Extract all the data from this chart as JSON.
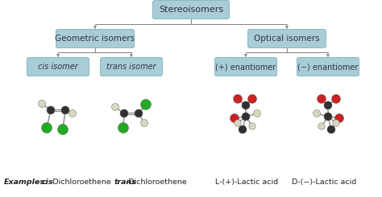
{
  "bg_color": "#ffffff",
  "box_fill": "#a8cdd6",
  "box_edge": "#88b8c4",
  "box_text": "#333344",
  "arrow_color": "#888888",
  "title": "Stereoisomers",
  "level1": [
    "Geometric isomers",
    "Optical isomers"
  ],
  "level2_0": "cis isomer",
  "level2_1": "trans isomer",
  "level2_2": "(+) enantiomer",
  "level2_3": "(−) enantiomer",
  "ex_label": "Examples:",
  "ex_cis_italic": "cis",
  "ex_cis_rest": "-Dichloroethene",
  "ex_trans_italic": "trans",
  "ex_trans_rest": "-Dichloroethene",
  "ex_lactic_l": "L-(+)-Lactic acid",
  "ex_lactic_d": "D-(−)-Lactic acid",
  "C_col": "#303030",
  "H_col": "#d8d8c0",
  "Cl_col": "#22aa22",
  "O_col": "#cc2222",
  "bond_col": "#999999"
}
